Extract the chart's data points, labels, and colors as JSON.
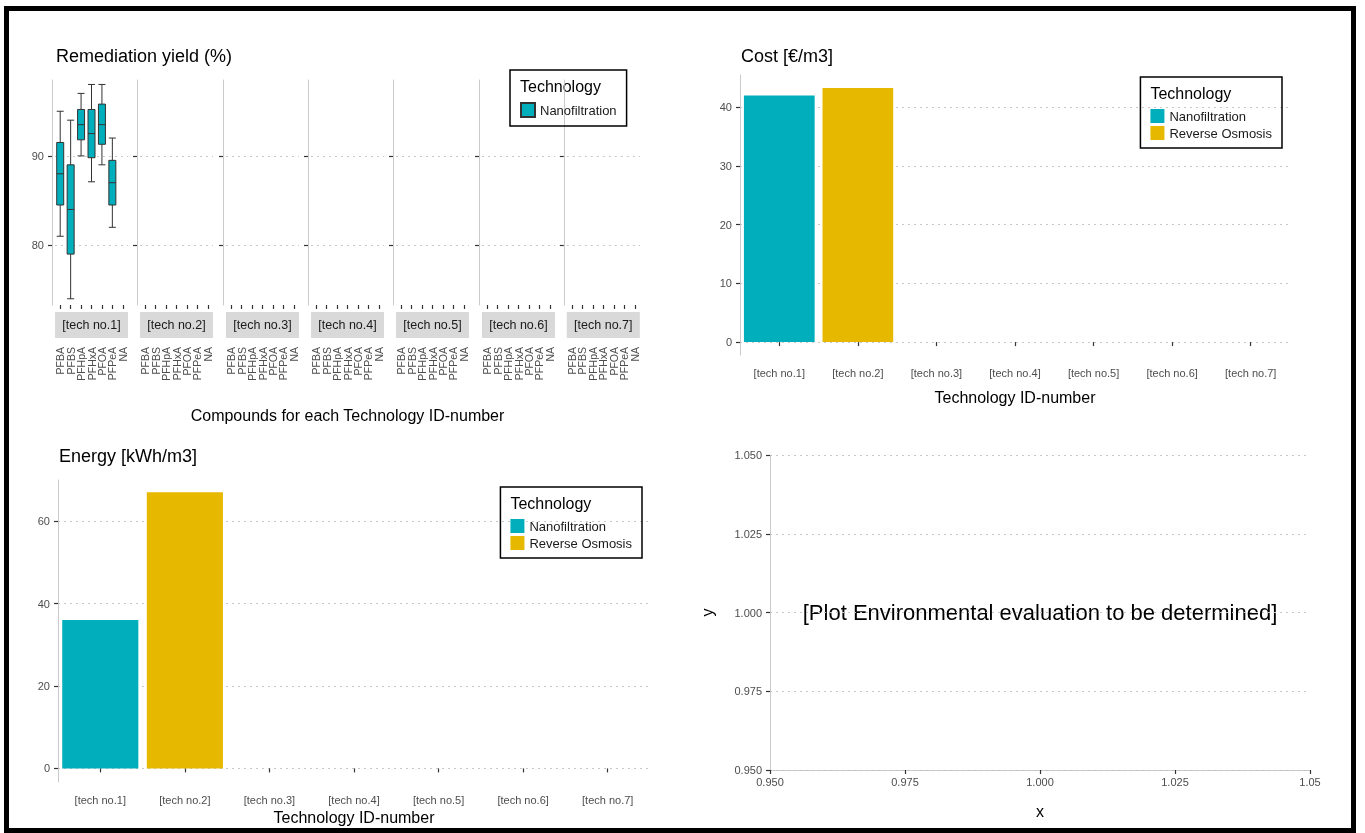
{
  "chart_data": [
    {
      "type": "box",
      "title": "Remediation yield (%)",
      "subtitle": "[tech no.1]",
      "categories": [
        "PFBA",
        "PFBS",
        "PFHpA",
        "PFHxA",
        "PFOA",
        "PFPeA",
        "NA"
      ],
      "series": [
        {
          "color": "#00afbb",
          "boxes": [
            {
              "low": 81.0,
              "q1": 84.5,
              "median": 88.0,
              "q3": 91.5,
              "high": 95.0
            },
            {
              "low": 74.0,
              "q1": 79.0,
              "median": 84.0,
              "q3": 89.0,
              "high": 94.0
            },
            {
              "low": 90.0,
              "q1": 91.8,
              "median": 93.5,
              "q3": 95.2,
              "high": 97.0
            },
            {
              "low": 87.1,
              "q1": 89.8,
              "median": 92.5,
              "q3": 95.2,
              "high": 98.0
            },
            {
              "low": 89.0,
              "q1": 91.3,
              "median": 93.5,
              "q3": 95.8,
              "high": 98.0
            },
            {
              "low": 82.0,
              "q1": 84.5,
              "median": 87.0,
              "q3": 89.5,
              "high": 92.0
            },
            null
          ]
        }
      ],
      "ylim": [
        73.3,
        98.5
      ],
      "yticks": [
        80,
        90
      ],
      "grid": "y"
    },
    {
      "type": "box",
      "subtitle": "[tech no.2]",
      "categories": [
        "PFBA",
        "PFBS",
        "PFHpA",
        "PFHxA",
        "PFOA",
        "PFPeA",
        "NA"
      ],
      "boxes": [
        null,
        null,
        null,
        null,
        null,
        null,
        null
      ],
      "ylim": [
        73.3,
        98.5
      ],
      "yticks": [
        80,
        90
      ],
      "grid": "y",
      "tick_labels": "x"
    },
    {
      "type": "box",
      "subtitle": "[tech no.3]",
      "categories": [
        "PFBA",
        "PFBS",
        "PFHpA",
        "PFHxA",
        "PFOA",
        "PFPeA",
        "NA"
      ],
      "boxes": [
        null,
        null,
        null,
        null,
        null,
        null,
        null
      ],
      "ylim": [
        73.3,
        98.5
      ],
      "yticks": [
        80,
        90
      ],
      "grid": "y",
      "tick_labels": "x"
    },
    {
      "type": "box",
      "subtitle": "[tech no.4]",
      "xlabel": "Compounds for each Technology ID-number",
      "categories": [
        "PFBA",
        "PFBS",
        "PFHpA",
        "PFHxA",
        "PFOA",
        "PFPeA",
        "NA"
      ],
      "boxes": [
        null,
        null,
        null,
        null,
        null,
        null,
        null
      ],
      "ylim": [
        73.3,
        98.5
      ],
      "yticks": [
        80,
        90
      ],
      "grid": "y",
      "tick_labels": "x"
    },
    {
      "type": "box",
      "subtitle": "[tech no.5]",
      "categories": [
        "PFBA",
        "PFBS",
        "PFHpA",
        "PFHxA",
        "PFOA",
        "PFPeA",
        "NA"
      ],
      "boxes": [
        null,
        null,
        null,
        null,
        null,
        null,
        null
      ],
      "ylim": [
        73.3,
        98.5
      ],
      "yticks": [
        80,
        90
      ],
      "grid": "y",
      "tick_labels": "x"
    },
    {
      "type": "box",
      "subtitle": "[tech no.6]",
      "categories": [
        "PFBA",
        "PFBS",
        "PFHpA",
        "PFHxA",
        "PFOA",
        "PFPeA",
        "NA"
      ],
      "boxes": [
        null,
        null,
        null,
        null,
        null,
        null,
        null
      ],
      "ylim": [
        73.3,
        98.5
      ],
      "yticks": [
        80,
        90
      ],
      "grid": "y",
      "tick_labels": "x"
    },
    {
      "type": "box",
      "subtitle": "[tech no.7]",
      "categories": [
        "PFBA",
        "PFBS",
        "PFHpA",
        "PFHxA",
        "PFOA",
        "PFPeA",
        "NA"
      ],
      "series": [
        {
          "name": "Nanofiltration",
          "color": "#00afbb",
          "boxes": [
            null,
            null,
            null,
            null,
            null,
            null,
            null
          ]
        }
      ],
      "ylim": [
        73.3,
        98.5
      ],
      "yticks": [
        80,
        90
      ],
      "grid": "y",
      "tick_labels": "x",
      "legend": "top left",
      "legend_title": "Technology"
    },
    {
      "type": "bar",
      "title": "Cost [€/m3]",
      "xlabel": "Technology ID-number",
      "categories": [
        "[tech no.1]",
        "[tech no.2]",
        "[tech no.3]",
        "[tech no.4]",
        "[tech no.5]",
        "[tech no.6]",
        "[tech no.7]"
      ],
      "series": [
        {
          "name": "Nanofiltration",
          "color": "#00afbb",
          "values": [
            42.0,
            null,
            null,
            null,
            null,
            null,
            null
          ]
        },
        {
          "name": "Reverse Osmosis",
          "color": "#e7b800",
          "values": [
            null,
            43.3,
            null,
            null,
            null,
            null,
            null
          ]
        }
      ],
      "ylim": [
        -2.2,
        45.5
      ],
      "yticks": [
        0,
        10,
        20,
        30,
        40
      ],
      "grid": "y",
      "legend": "top right",
      "legend_title": "Technology"
    },
    {
      "type": "bar",
      "title": "Energy [kWh/m3]",
      "xlabel": "Technology ID-number",
      "categories": [
        "[tech no.1]",
        "[tech no.2]",
        "[tech no.3]",
        "[tech no.4]",
        "[tech no.5]",
        "[tech no.6]",
        "[tech no.7]"
      ],
      "series": [
        {
          "name": "Nanofiltration",
          "color": "#00afbb",
          "values": [
            36,
            null,
            null,
            null,
            null,
            null,
            null
          ]
        },
        {
          "name": "Reverse Osmosis",
          "color": "#e7b800",
          "values": [
            null,
            67,
            null,
            null,
            null,
            null,
            null
          ]
        }
      ],
      "ylim": [
        -3.3,
        70
      ],
      "yticks": [
        0,
        20,
        40,
        60
      ],
      "grid": "y",
      "legend": "top right",
      "legend_title": "Technology"
    },
    {
      "type": "scatter",
      "xlabel": "x",
      "ylabel": "y",
      "xlim": [
        0.95,
        1.05
      ],
      "xticks": [
        {
          "value": 0.95,
          "label": "0.950"
        },
        {
          "value": 0.975,
          "label": "0.975"
        },
        {
          "value": 1.0,
          "label": "1.000"
        },
        {
          "value": 1.025,
          "label": "1.025"
        },
        {
          "value": 1.05,
          "label": "1.05"
        }
      ],
      "ylim": [
        0.95,
        1.05
      ],
      "yticks": [
        {
          "value": 0.95,
          "label": "0.950"
        },
        {
          "value": 0.975,
          "label": "0.975"
        },
        {
          "value": 1.0,
          "label": "1.000"
        },
        {
          "value": 1.025,
          "label": "1.025"
        },
        {
          "value": 1.05,
          "label": "1.050"
        }
      ],
      "grid": "y",
      "annotations": [
        "[Plot Environmental evaluation to be determined]"
      ]
    }
  ]
}
